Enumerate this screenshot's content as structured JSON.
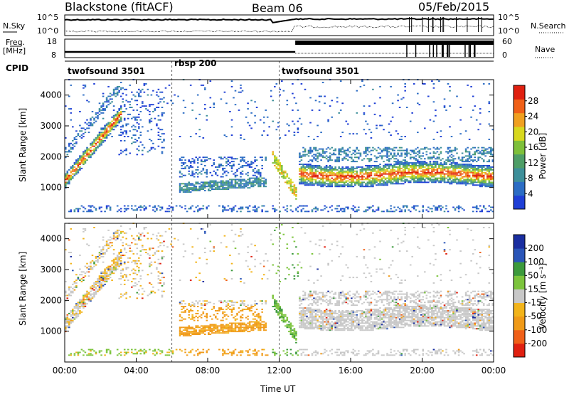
{
  "header": {
    "station": "Blackstone (fitACF)",
    "beam": "Beam 06",
    "date": "05/Feb/2015"
  },
  "left_labels": {
    "nsky": "N.Sky",
    "freq": "Freq.",
    "freq_unit": "[MHz]",
    "cpid": "CPID"
  },
  "right_labels": {
    "nsearch": "N.Search",
    "nave": "Nave"
  },
  "nsky_ticks": [
    "10^5",
    "10^0"
  ],
  "nsearch_ticks": [
    "10^5",
    "10^0"
  ],
  "freq_ticks": [
    "18",
    "8"
  ],
  "nave_ticks": [
    "60",
    "0"
  ],
  "cpid_segments": [
    {
      "label": "twofsound 3501",
      "start": 0,
      "end": 6.0
    },
    {
      "label": "rbsp 200",
      "start": 6.0,
      "end": 12.0
    },
    {
      "label": "twofsound 3501",
      "start": 12.0,
      "end": 24.0
    }
  ],
  "colors": {
    "power": [
      "#1f3fd6",
      "#2b6cc4",
      "#3d8f9a",
      "#4e9e67",
      "#7ec03a",
      "#d8d81e",
      "#f0a020",
      "#f06018",
      "#e02010"
    ],
    "velocity": [
      "#e02010",
      "#f06018",
      "#f09a18",
      "#f2b41a",
      "#c8c8c8",
      "#7cc43c",
      "#3c9a3c",
      "#2a55b8",
      "#1a2ea0"
    ]
  },
  "chart_data": [
    {
      "type": "heatmap",
      "name": "power",
      "ylabel": "Slant Range [km]",
      "xlabel": "Time UT",
      "x_ticks": [
        "00:00",
        "04:00",
        "08:00",
        "12:00",
        "16:00",
        "20:00",
        "00:00"
      ],
      "y_ticks": [
        "1000",
        "2000",
        "3000",
        "4000"
      ],
      "ylim": [
        0,
        4500
      ],
      "xlim": [
        0,
        24
      ],
      "colorbar": {
        "label": "Power [dB]",
        "ticks": [
          "28",
          "24",
          "20",
          "16",
          "12",
          "8",
          "4"
        ],
        "range": [
          0,
          30
        ]
      }
    },
    {
      "type": "heatmap",
      "name": "velocity",
      "ylabel": "Slant Range [km]",
      "xlabel": "Time UT",
      "x_ticks": [
        "00:00",
        "04:00",
        "08:00",
        "12:00",
        "16:00",
        "20:00",
        "00:00"
      ],
      "y_ticks": [
        "1000",
        "2000",
        "3000",
        "4000"
      ],
      "ylim": [
        0,
        4500
      ],
      "xlim": [
        0,
        24
      ],
      "colorbar": {
        "label": "Velocity [m s⁻¹]",
        "ticks": [
          "200",
          "100",
          "50",
          "15",
          "-15",
          "-50",
          "-100",
          "-200"
        ],
        "range": [
          -250,
          250
        ]
      }
    }
  ],
  "x_axis_title": "Time UT"
}
